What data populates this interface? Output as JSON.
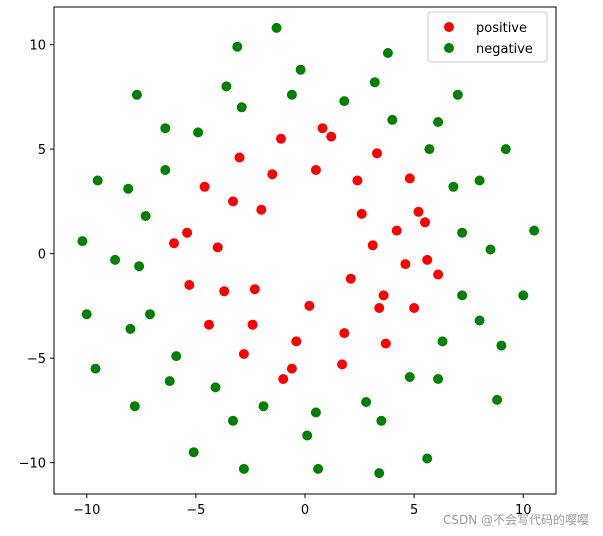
{
  "chart_data": {
    "type": "scatter",
    "title": "",
    "xlabel": "",
    "ylabel": "",
    "xlim": [
      -11.5,
      11.5
    ],
    "ylim": [
      -11.5,
      11.8
    ],
    "x_ticks": [
      -10,
      -5,
      0,
      5,
      10
    ],
    "y_ticks": [
      -10,
      -5,
      0,
      5,
      10
    ],
    "x_tick_labels": [
      "−10",
      "−5",
      "0",
      "5",
      "10"
    ],
    "y_tick_labels": [
      "−10",
      "−5",
      "0",
      "5",
      "10"
    ],
    "grid": false,
    "legend_position": "top-right",
    "series": [
      {
        "name": "positive",
        "color": "#ff0000",
        "points": [
          [
            3.1,
            0.4
          ],
          [
            4.2,
            1.1
          ],
          [
            3.6,
            -2.0
          ],
          [
            2.4,
            3.5
          ],
          [
            0.5,
            4.0
          ],
          [
            -1.5,
            3.8
          ],
          [
            -3.3,
            2.5
          ],
          [
            -4.0,
            0.3
          ],
          [
            -3.7,
            -1.8
          ],
          [
            -2.4,
            -3.4
          ],
          [
            -0.4,
            -4.2
          ],
          [
            1.8,
            -3.8
          ],
          [
            3.4,
            -2.6
          ],
          [
            4.6,
            -0.5
          ],
          [
            5.2,
            2.0
          ],
          [
            4.8,
            3.6
          ],
          [
            3.3,
            4.8
          ],
          [
            1.2,
            5.6
          ],
          [
            -1.1,
            5.5
          ],
          [
            -3.0,
            4.6
          ],
          [
            -4.6,
            3.2
          ],
          [
            -5.4,
            1.0
          ],
          [
            -5.3,
            -1.5
          ],
          [
            -4.4,
            -3.4
          ],
          [
            -2.8,
            -4.8
          ],
          [
            -0.6,
            -5.5
          ],
          [
            1.7,
            -5.3
          ],
          [
            3.7,
            -4.3
          ],
          [
            5.0,
            -2.6
          ],
          [
            5.6,
            -0.3
          ],
          [
            5.5,
            1.5
          ],
          [
            2.1,
            -1.2
          ],
          [
            2.6,
            1.9
          ],
          [
            -2.3,
            -1.7
          ],
          [
            -2.0,
            2.1
          ],
          [
            0.2,
            -2.5
          ],
          [
            -6.0,
            0.5
          ],
          [
            6.1,
            -1.0
          ],
          [
            -1.0,
            -6.0
          ],
          [
            0.8,
            6.0
          ]
        ]
      },
      {
        "name": "negative",
        "color": "#008000",
        "points": [
          [
            7.2,
            1.0
          ],
          [
            6.8,
            3.2
          ],
          [
            5.7,
            5.0
          ],
          [
            4.0,
            6.4
          ],
          [
            1.8,
            7.3
          ],
          [
            -0.6,
            7.6
          ],
          [
            -2.9,
            7.0
          ],
          [
            -4.9,
            5.8
          ],
          [
            -6.4,
            4.0
          ],
          [
            -7.3,
            1.8
          ],
          [
            -7.6,
            -0.6
          ],
          [
            -7.1,
            -2.9
          ],
          [
            -5.9,
            -4.9
          ],
          [
            -4.1,
            -6.4
          ],
          [
            -1.9,
            -7.3
          ],
          [
            0.5,
            -7.6
          ],
          [
            2.8,
            -7.1
          ],
          [
            4.8,
            -5.9
          ],
          [
            6.3,
            -4.2
          ],
          [
            7.2,
            -2.0
          ],
          [
            8.5,
            0.2
          ],
          [
            8.0,
            3.5
          ],
          [
            6.1,
            6.3
          ],
          [
            3.2,
            8.2
          ],
          [
            -0.2,
            8.8
          ],
          [
            -3.6,
            8.0
          ],
          [
            -6.4,
            6.0
          ],
          [
            -8.1,
            3.1
          ],
          [
            -8.7,
            -0.3
          ],
          [
            -8.0,
            -3.6
          ],
          [
            -6.2,
            -6.1
          ],
          [
            -3.3,
            -8.0
          ],
          [
            0.1,
            -8.7
          ],
          [
            3.5,
            -8.0
          ],
          [
            6.1,
            -6.0
          ],
          [
            8.0,
            -3.2
          ],
          [
            10.5,
            1.1
          ],
          [
            -10.2,
            0.6
          ],
          [
            -10.0,
            -2.9
          ],
          [
            0.6,
            -10.3
          ],
          [
            -2.8,
            -10.3
          ],
          [
            3.4,
            -10.5
          ],
          [
            5.6,
            -9.8
          ],
          [
            -1.3,
            10.8
          ],
          [
            -3.1,
            9.9
          ],
          [
            3.8,
            9.6
          ],
          [
            9.0,
            -4.4
          ],
          [
            -9.5,
            3.5
          ],
          [
            9.2,
            5.0
          ],
          [
            -7.8,
            -7.3
          ],
          [
            -5.1,
            -9.5
          ],
          [
            7.0,
            7.6
          ],
          [
            -7.7,
            7.6
          ],
          [
            8.8,
            -7.0
          ],
          [
            10.0,
            -2.0
          ],
          [
            -9.6,
            -5.5
          ]
        ]
      }
    ]
  },
  "watermark": "CSDN @不会写代码的嘤嘤"
}
